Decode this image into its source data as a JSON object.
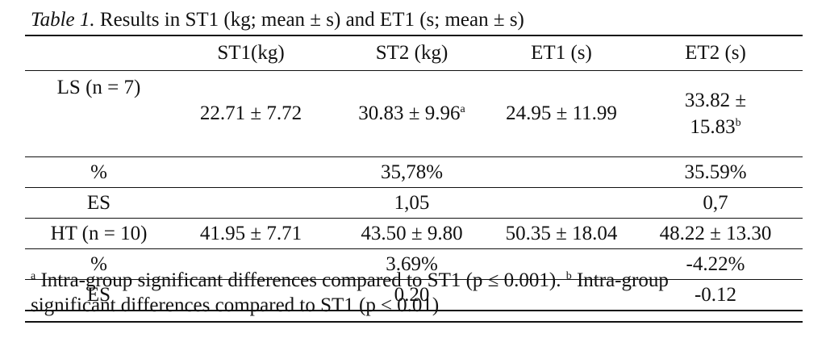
{
  "caption": {
    "label": "Table 1.",
    "text": " Results in ST1 (kg; mean ± s) and ET1 (s; mean ± s)"
  },
  "table": {
    "headers": [
      "",
      "ST1(kg)",
      "ST2 (kg)",
      "ET1 (s)",
      "ET2 (s)"
    ],
    "ls": {
      "label": "LS (n = 7)",
      "st1": "22.71 ± 7.72",
      "st2": "30.83 ± 9.96",
      "st2_sup": "a",
      "et1": "24.95 ± 11.99",
      "et2_line1": "33.82 ±",
      "et2_line2": "15.83",
      "et2_sup": "b",
      "pct_label": "%",
      "pct_st2": "35,78%",
      "pct_et2": "35.59%",
      "es_label": "ES",
      "es_st2": "1,05",
      "es_et2": "0,7"
    },
    "ht": {
      "label": "HT (n = 10)",
      "st1": "41.95 ± 7.71",
      "st2": "43.50 ± 9.80",
      "et1": "50.35 ± 18.04",
      "et2": "48.22 ± 13.30",
      "pct_label": "%",
      "pct_st2": "3.69%",
      "pct_et2": "-4.22%",
      "es_label": "ES",
      "es_st2": "0.20",
      "es_et2": "-0.12"
    }
  },
  "footnote": {
    "a_mark": "a",
    "a_text": " Intra-group significant differences compared to ST1 (p ≤ 0.001). ",
    "b_mark": "b",
    "b_text_line1": " Intra-group",
    "b_text_line2": "significant differences compared to ST1 (p ≤ 0.01)"
  }
}
